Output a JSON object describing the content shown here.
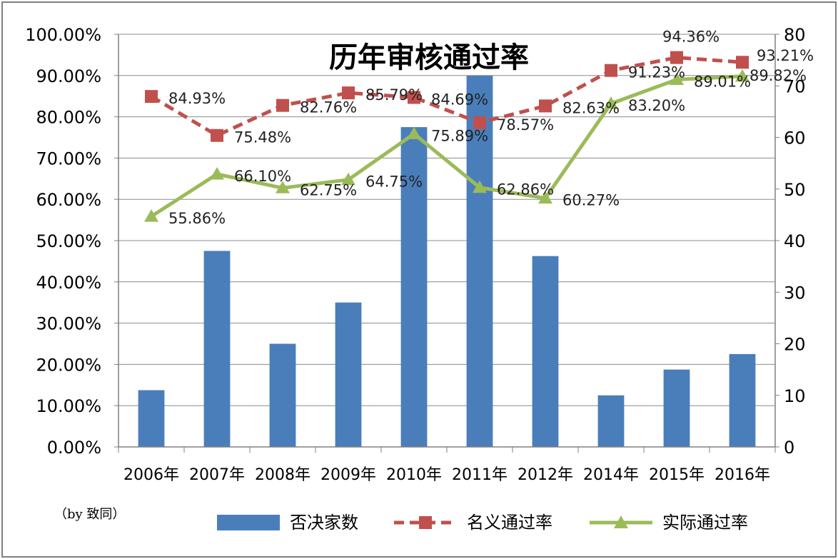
{
  "chart_data": {
    "type": "bar+line",
    "title": "历年审核通过率",
    "credit": "（by 致同）",
    "categories": [
      "2006年",
      "2007年",
      "2008年",
      "2009年",
      "2010年",
      "2011年",
      "2012年",
      "2014年",
      "2015年",
      "2016年"
    ],
    "y_left": {
      "min": 0,
      "max": 1.0,
      "step": 0.1,
      "ticks": [
        "0.00%",
        "10.00%",
        "20.00%",
        "30.00%",
        "40.00%",
        "50.00%",
        "60.00%",
        "70.00%",
        "80.00%",
        "90.00%",
        "100.00%"
      ]
    },
    "y_right": {
      "min": 0,
      "max": 80,
      "step": 10,
      "ticks": [
        "0",
        "10",
        "20",
        "30",
        "40",
        "50",
        "60",
        "70",
        "80"
      ]
    },
    "bars": {
      "name": "否决家数",
      "axis": "right",
      "color": "#4a7ebb",
      "values": [
        11,
        38,
        20,
        28,
        62,
        72,
        37,
        10,
        15,
        18
      ]
    },
    "lines": [
      {
        "name": "名义通过率",
        "axis": "left",
        "color": "#c0504d",
        "marker": "square",
        "dashed": true,
        "values": [
          0.8493,
          0.7548,
          0.8276,
          0.8579,
          0.8469,
          0.7857,
          0.8263,
          0.9123,
          0.9436,
          0.9321
        ],
        "labels": [
          "84.93%",
          "75.48%",
          "82.76%",
          "85.79%",
          "84.69%",
          "78.57%",
          "82.63%",
          "91.23%",
          "94.36%",
          "93.21%"
        ]
      },
      {
        "name": "实际通过率",
        "axis": "left",
        "color": "#9bbb59",
        "marker": "triangle",
        "dashed": false,
        "values": [
          0.5586,
          0.661,
          0.6275,
          0.6475,
          0.7589,
          0.6286,
          0.6027,
          0.832,
          0.8901,
          0.8982
        ],
        "labels": [
          "55.86%",
          "66.10%",
          "62.75%",
          "64.75%",
          "75.89%",
          "62.86%",
          "60.27%",
          "83.20%",
          "89.01%",
          "89.82%"
        ]
      }
    ],
    "legend_position": "bottom"
  }
}
